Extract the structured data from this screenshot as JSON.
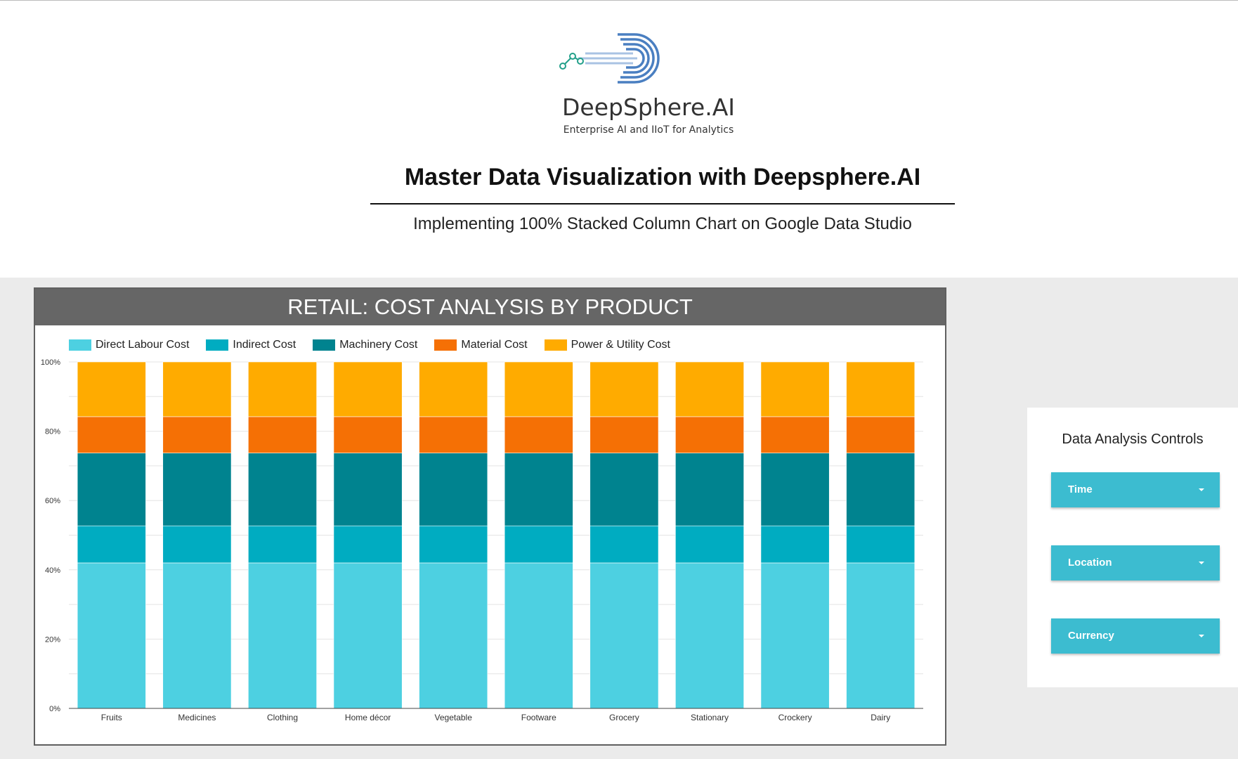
{
  "header": {
    "logo": {
      "name": "DeepSphere.AI",
      "tagline": "Enterprise AI and IIoT for Analytics",
      "icon": "deepsphere-logo-icon"
    },
    "title": "Master Data Visualization with Deepsphere.AI",
    "subtitle": "Implementing 100% Stacked Column Chart on Google Data Studio"
  },
  "colors": {
    "page_bg": "#ebebeb",
    "panel_header": "#666666",
    "control_accent": "#3cbcd0"
  },
  "chart_data": {
    "type": "bar",
    "stacked": "percent",
    "title": "RETAIL: COST ANALYSIS BY PRODUCT",
    "categories": [
      "Fruits",
      "Medicines",
      "Clothing",
      "Home décor",
      "Vegetable",
      "Footware",
      "Grocery",
      "Stationary",
      "Crockery",
      "Dairy"
    ],
    "series": [
      {
        "name": "Direct Labour Cost",
        "color": "#4dd0e1",
        "values": [
          42,
          42,
          42,
          42,
          42,
          42,
          42,
          42,
          42,
          42
        ]
      },
      {
        "name": "Indirect Cost",
        "color": "#00acc1",
        "values": [
          10.7,
          10.7,
          10.7,
          10.7,
          10.7,
          10.7,
          10.7,
          10.7,
          10.7,
          10.7
        ]
      },
      {
        "name": "Machinery Cost",
        "color": "#00838f",
        "values": [
          21,
          21,
          21,
          21,
          21,
          21,
          21,
          21,
          21,
          21
        ]
      },
      {
        "name": "Material Cost",
        "color": "#f57005",
        "values": [
          10.5,
          10.5,
          10.5,
          10.5,
          10.5,
          10.5,
          10.5,
          10.5,
          10.5,
          10.5
        ]
      },
      {
        "name": "Power & Utility Cost",
        "color": "#ffab00",
        "values": [
          15.8,
          15.8,
          15.8,
          15.8,
          15.8,
          15.8,
          15.8,
          15.8,
          15.8,
          15.8
        ]
      }
    ],
    "yticks": [
      "0%",
      "20%",
      "40%",
      "60%",
      "80%",
      "100%"
    ],
    "ylim": [
      0,
      100
    ],
    "grid": true,
    "legend_position": "top-left"
  },
  "controls": {
    "title": "Data Analysis Controls",
    "dropdowns": [
      {
        "label": "Time"
      },
      {
        "label": "Location"
      },
      {
        "label": "Currency"
      }
    ],
    "caret_icon": "caret-down-icon"
  }
}
